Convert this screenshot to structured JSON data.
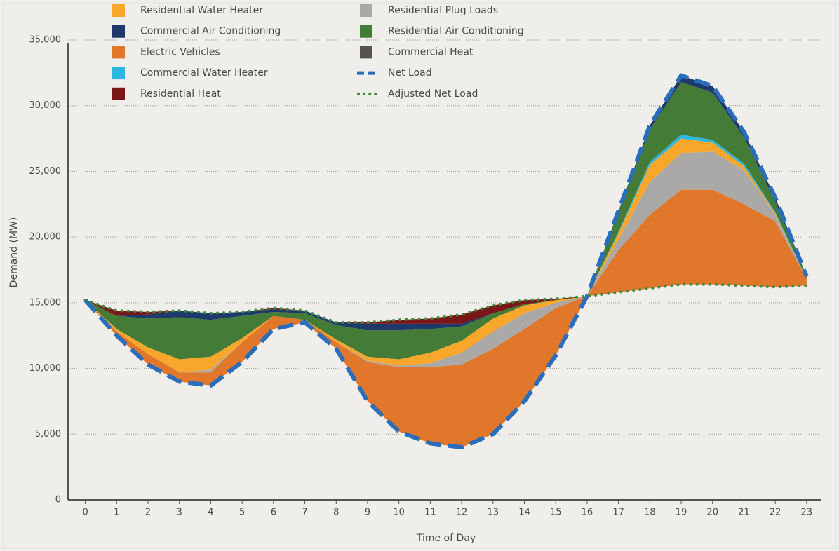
{
  "chart_data": {
    "type": "stacked-area",
    "x_label": "Time of Day",
    "y_label": "Demand (MW)",
    "x": [
      0,
      1,
      2,
      3,
      4,
      5,
      6,
      7,
      8,
      9,
      10,
      11,
      12,
      13,
      14,
      15,
      16,
      17,
      18,
      19,
      20,
      21,
      22,
      23
    ],
    "xlim": [
      -0.55,
      23.45
    ],
    "ylim": [
      0,
      35000
    ],
    "yticks": [
      0,
      {
        "value": 5000,
        "label": "5,000"
      },
      {
        "value": 10000,
        "label": "10,000"
      },
      {
        "value": 15000,
        "label": "15,000"
      },
      {
        "value": 20000,
        "label": "20,000"
      },
      {
        "value": 25000,
        "label": "25,000"
      },
      {
        "value": 30000,
        "label": "30,000"
      },
      {
        "value": 35000,
        "label": "35,000"
      }
    ],
    "grid": true,
    "series": [
      {
        "name": "Electric Vehicles",
        "type": "area",
        "color": "#e0772a",
        "values": [
          0,
          300,
          800,
          700,
          1000,
          1500,
          1000,
          200,
          500,
          3000,
          4900,
          5800,
          6300,
          6500,
          5500,
          3600,
          0,
          3200,
          5600,
          7200,
          7200,
          6200,
          5000,
          500
        ]
      },
      {
        "name": "Residential Plug Loads",
        "type": "area",
        "color": "#aaa9a8",
        "values": [
          0,
          0,
          0,
          0,
          200,
          0,
          0,
          0,
          0,
          100,
          100,
          300,
          900,
          1300,
          1200,
          400,
          0,
          800,
          2500,
          2800,
          2900,
          2600,
          500,
          0
        ]
      },
      {
        "name": "Residential Water Heater",
        "type": "area",
        "color": "#f9a72b",
        "values": [
          0,
          200,
          500,
          1000,
          1000,
          300,
          0,
          0,
          200,
          300,
          500,
          800,
          900,
          1000,
          600,
          200,
          0,
          500,
          1300,
          1100,
          700,
          300,
          100,
          0
        ]
      },
      {
        "name": "Commercial Water Heater",
        "type": "area",
        "color": "#2bb7e2",
        "values": [
          0,
          0,
          0,
          0,
          0,
          0,
          0,
          0,
          0,
          0,
          0,
          0,
          0,
          0,
          0,
          0,
          0,
          100,
          200,
          300,
          200,
          200,
          100,
          0
        ]
      },
      {
        "name": "Residential Air Conditioning",
        "type": "area",
        "color": "#447b37",
        "values": [
          0,
          1000,
          2200,
          3200,
          2800,
          1700,
          300,
          500,
          1100,
          2000,
          2200,
          1800,
          1100,
          400,
          100,
          0,
          0,
          1600,
          2500,
          4000,
          3600,
          2000,
          800,
          200
        ]
      },
      {
        "name": "Commercial Air Conditioning",
        "type": "area",
        "color": "#1d3a6b",
        "values": [
          0,
          0,
          300,
          500,
          500,
          300,
          200,
          200,
          200,
          500,
          500,
          400,
          200,
          0,
          0,
          0,
          0,
          0,
          300,
          500,
          500,
          400,
          300,
          0
        ]
      },
      {
        "name": "Commercial Heat",
        "type": "area",
        "color": "#575352",
        "values": [
          0,
          0,
          0,
          0,
          0,
          0,
          0,
          0,
          0,
          0,
          0,
          0,
          0,
          0,
          0,
          0,
          0,
          0,
          0,
          0,
          0,
          0,
          0,
          0
        ]
      },
      {
        "name": "Residential Heat",
        "type": "area",
        "color": "#7a1618",
        "values": [
          0,
          400,
          200,
          0,
          0,
          0,
          100,
          0,
          0,
          100,
          300,
          400,
          700,
          600,
          300,
          100,
          0,
          0,
          0,
          0,
          0,
          0,
          0,
          0
        ]
      },
      {
        "name": "Net Load",
        "type": "line",
        "style": "dashed",
        "color": "#2a6ebb",
        "values": [
          15200,
          12500,
          10300,
          9000,
          8700,
          10500,
          13000,
          13500,
          11500,
          7500,
          5200,
          4300,
          4000,
          5000,
          7500,
          11000,
          15500,
          22000,
          28500,
          32300,
          31500,
          28000,
          23000,
          17000
        ]
      },
      {
        "name": "Adjusted Net Load",
        "type": "line",
        "style": "dotted",
        "color": "#3f8b3a",
        "values": [
          15200,
          14400,
          14300,
          14400,
          14200,
          14300,
          14600,
          14400,
          13500,
          13500,
          13700,
          13800,
          14100,
          14800,
          15200,
          15300,
          15500,
          15800,
          16100,
          16400,
          16400,
          16300,
          16200,
          16300
        ]
      }
    ]
  }
}
